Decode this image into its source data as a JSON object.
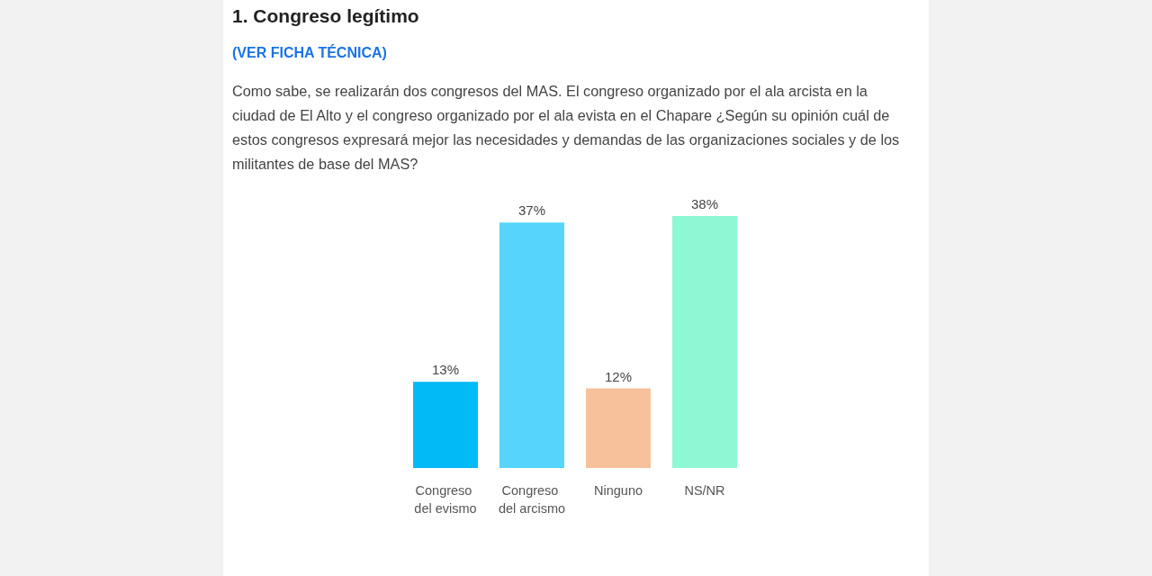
{
  "chart_data": {
    "type": "bar",
    "title": "1. Congreso legítimo",
    "subtitle": "(VER FICHA TÉCNICA)",
    "annotations": [
      "Como sabe, se realizarán dos congresos del MAS. El congreso organizado por el ala arcista en la ciudad de El Alto y el congreso organizado por el ala evista en el Chapare ¿Según su opinión cuál de estos congresos expresará mejor las necesidades y demandas de las organizaciones sociales y de los militantes de base del MAS?"
    ],
    "categories": [
      "Congreso del evismo",
      "Congreso del arcismo",
      "Ninguno",
      "NS/NR"
    ],
    "values": [
      13,
      37,
      12,
      38
    ],
    "colors": [
      "#02baf5",
      "#57d4fb",
      "#f6c19b",
      "#8ef7d4"
    ],
    "value_labels": [
      "13%",
      "37%",
      "12%",
      "38%"
    ]
  }
}
